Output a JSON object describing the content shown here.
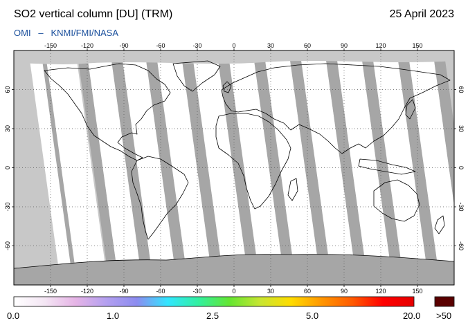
{
  "header": {
    "title": "SO2 vertical column [DU] (TRM)",
    "date": "25 April 2023",
    "instrument": "OMI",
    "separator": "–",
    "provider": "KNMI/FMI/NASA"
  },
  "map": {
    "projection": "equirectangular",
    "lon_range": [
      -180,
      180
    ],
    "lat_range": [
      -90,
      90
    ],
    "lon_ticks": [
      -150,
      -120,
      -90,
      -60,
      -30,
      0,
      30,
      60,
      90,
      120,
      150
    ],
    "lat_ticks": [
      -60,
      -30,
      0,
      30,
      60
    ],
    "lon_tick_labels": [
      "-150",
      "-120",
      "-90",
      "-60",
      "-30",
      "0",
      "30",
      "60",
      "90",
      "120",
      "150"
    ],
    "lat_tick_labels": [
      "-60",
      "-30",
      "0",
      "30",
      "60"
    ],
    "grid": "dotted",
    "colors": {
      "no_data": "#c8c8c8",
      "overlap_swath": "#a6a6a6",
      "valid_low": "#ffffff",
      "coastline": "#000000"
    }
  },
  "colorbar": {
    "labels": [
      "0.0",
      "1.0",
      "2.5",
      "5.0",
      "20.0"
    ],
    "overflow_label": ">50",
    "overflow_color": "#5a0000",
    "stops": [
      "#ffffff",
      "#f4e6f4",
      "#e6b4e6",
      "#b4a0f0",
      "#8c8cf0",
      "#32e6ff",
      "#32f0a0",
      "#64e632",
      "#c8e632",
      "#ffdc00",
      "#ff9600",
      "#ff5a00",
      "#ff0000",
      "#e60000"
    ]
  }
}
